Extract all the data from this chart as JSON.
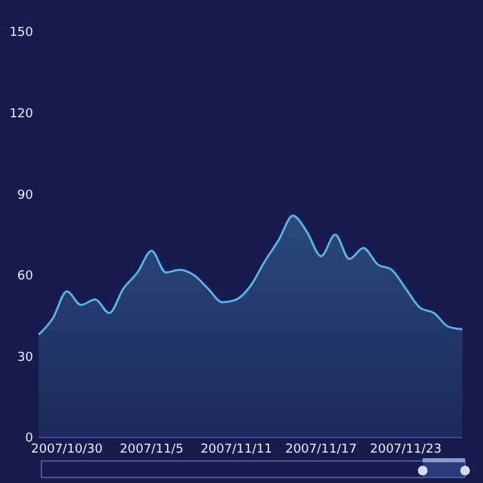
{
  "chart_data": {
    "type": "area",
    "x": [
      "2007-10-28",
      "2007-10-29",
      "2007-10-30",
      "2007-10-31",
      "2007-11-01",
      "2007-11-02",
      "2007-11-03",
      "2007-11-04",
      "2007-11-05",
      "2007-11-06",
      "2007-11-07",
      "2007-11-08",
      "2007-11-09",
      "2007-11-10",
      "2007-11-11",
      "2007-11-12",
      "2007-11-13",
      "2007-11-14",
      "2007-11-15",
      "2007-11-16",
      "2007-11-17",
      "2007-11-18",
      "2007-11-19",
      "2007-11-20",
      "2007-11-21",
      "2007-11-22",
      "2007-11-23",
      "2007-11-24",
      "2007-11-25",
      "2007-11-26",
      "2007-11-27"
    ],
    "values": [
      38,
      44,
      54,
      49,
      51,
      46,
      55,
      61,
      69,
      61,
      62,
      60,
      55,
      50,
      51,
      56,
      65,
      73,
      82,
      76,
      67,
      75,
      66,
      70,
      64,
      62,
      55,
      48,
      46,
      41,
      40
    ],
    "color": "#58b4e8",
    "xlim": [
      "2007-10-28",
      "2007-11-27"
    ],
    "xticks": [
      {
        "value": "2007-10-30",
        "label": "2007/10/30"
      },
      {
        "value": "2007-11-05",
        "label": "2007/11/5"
      },
      {
        "value": "2007-11-11",
        "label": "2007/11/11"
      },
      {
        "value": "2007-11-17",
        "label": "2007/11/17"
      },
      {
        "value": "2007-11-23",
        "label": "2007/11/23"
      }
    ],
    "ylim": [
      0,
      150
    ],
    "yticks": [
      0,
      30,
      60,
      90,
      120,
      150
    ]
  }
}
